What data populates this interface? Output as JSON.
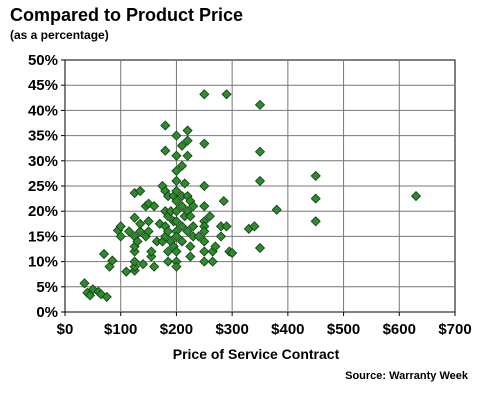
{
  "title": "Compared to Product Price",
  "subtitle": "(as a percentage)",
  "source": "Source: Warranty Week",
  "chart_data": {
    "type": "scatter",
    "title": "Compared to Product Price",
    "subtitle": "(as a percentage)",
    "xlabel": "Price of Service Contract",
    "ylabel": "",
    "xlim": [
      0,
      700
    ],
    "ylim": [
      0,
      0.5
    ],
    "grid": true,
    "x_ticks": [
      "$0",
      "$100",
      "$200",
      "$300",
      "$400",
      "$500",
      "$600",
      "$700"
    ],
    "y_ticks": [
      "0%",
      "5%",
      "10%",
      "15%",
      "20%",
      "25%",
      "30%",
      "35%",
      "40%",
      "45%",
      "50%"
    ],
    "marker_color": "#2e8b2e",
    "series": [
      {
        "name": "",
        "points": [
          [
            35,
            0.057
          ],
          [
            40,
            0.038
          ],
          [
            45,
            0.033
          ],
          [
            50,
            0.045
          ],
          [
            60,
            0.04
          ],
          [
            65,
            0.035
          ],
          [
            70,
            0.115
          ],
          [
            75,
            0.03
          ],
          [
            80,
            0.09
          ],
          [
            85,
            0.102
          ],
          [
            95,
            0.162
          ],
          [
            100,
            0.15
          ],
          [
            100,
            0.17
          ],
          [
            110,
            0.08
          ],
          [
            115,
            0.16
          ],
          [
            125,
            0.082
          ],
          [
            125,
            0.09
          ],
          [
            125,
            0.1
          ],
          [
            125,
            0.12
          ],
          [
            125,
            0.13
          ],
          [
            125,
            0.15
          ],
          [
            125,
            0.187
          ],
          [
            125,
            0.236
          ],
          [
            130,
            0.14
          ],
          [
            135,
            0.16
          ],
          [
            135,
            0.175
          ],
          [
            135,
            0.24
          ],
          [
            140,
            0.095
          ],
          [
            145,
            0.15
          ],
          [
            145,
            0.21
          ],
          [
            150,
            0.16
          ],
          [
            150,
            0.18
          ],
          [
            150,
            0.215
          ],
          [
            155,
            0.11
          ],
          [
            155,
            0.12
          ],
          [
            160,
            0.09
          ],
          [
            160,
            0.21
          ],
          [
            165,
            0.14
          ],
          [
            170,
            0.175
          ],
          [
            175,
            0.25
          ],
          [
            175,
            0.14
          ],
          [
            180,
            0.37
          ],
          [
            180,
            0.32
          ],
          [
            180,
            0.24
          ],
          [
            180,
            0.2
          ],
          [
            180,
            0.17
          ],
          [
            180,
            0.15
          ],
          [
            185,
            0.23
          ],
          [
            185,
            0.19
          ],
          [
            185,
            0.16
          ],
          [
            185,
            0.12
          ],
          [
            185,
            0.1
          ],
          [
            190,
            0.2
          ],
          [
            190,
            0.14
          ],
          [
            195,
            0.23
          ],
          [
            195,
            0.18
          ],
          [
            195,
            0.13
          ],
          [
            200,
            0.35
          ],
          [
            200,
            0.31
          ],
          [
            200,
            0.28
          ],
          [
            200,
            0.26
          ],
          [
            200,
            0.24
          ],
          [
            200,
            0.22
          ],
          [
            200,
            0.2
          ],
          [
            200,
            0.18
          ],
          [
            200,
            0.16
          ],
          [
            200,
            0.15
          ],
          [
            200,
            0.12
          ],
          [
            200,
            0.1
          ],
          [
            200,
            0.09
          ],
          [
            210,
            0.33
          ],
          [
            210,
            0.29
          ],
          [
            210,
            0.23
          ],
          [
            210,
            0.21
          ],
          [
            210,
            0.17
          ],
          [
            210,
            0.14
          ],
          [
            215,
            0.255
          ],
          [
            215,
            0.19
          ],
          [
            220,
            0.36
          ],
          [
            220,
            0.34
          ],
          [
            220,
            0.31
          ],
          [
            220,
            0.23
          ],
          [
            220,
            0.2
          ],
          [
            220,
            0.16
          ],
          [
            225,
            0.22
          ],
          [
            225,
            0.19
          ],
          [
            225,
            0.13
          ],
          [
            225,
            0.11
          ],
          [
            230,
            0.21
          ],
          [
            230,
            0.17
          ],
          [
            230,
            0.15
          ],
          [
            240,
            0.15
          ],
          [
            250,
            0.432
          ],
          [
            250,
            0.334
          ],
          [
            250,
            0.25
          ],
          [
            250,
            0.21
          ],
          [
            250,
            0.18
          ],
          [
            250,
            0.17
          ],
          [
            250,
            0.16
          ],
          [
            250,
            0.14
          ],
          [
            250,
            0.12
          ],
          [
            250,
            0.1
          ],
          [
            260,
            0.19
          ],
          [
            265,
            0.12
          ],
          [
            265,
            0.1
          ],
          [
            270,
            0.13
          ],
          [
            280,
            0.17
          ],
          [
            280,
            0.15
          ],
          [
            285,
            0.22
          ],
          [
            290,
            0.432
          ],
          [
            290,
            0.17
          ],
          [
            295,
            0.12
          ],
          [
            300,
            0.117
          ],
          [
            330,
            0.165
          ],
          [
            340,
            0.17
          ],
          [
            350,
            0.411
          ],
          [
            350,
            0.318
          ],
          [
            350,
            0.26
          ],
          [
            350,
            0.127
          ],
          [
            380,
            0.203
          ],
          [
            450,
            0.27
          ],
          [
            450,
            0.225
          ],
          [
            450,
            0.18
          ],
          [
            630,
            0.23
          ]
        ]
      }
    ]
  }
}
